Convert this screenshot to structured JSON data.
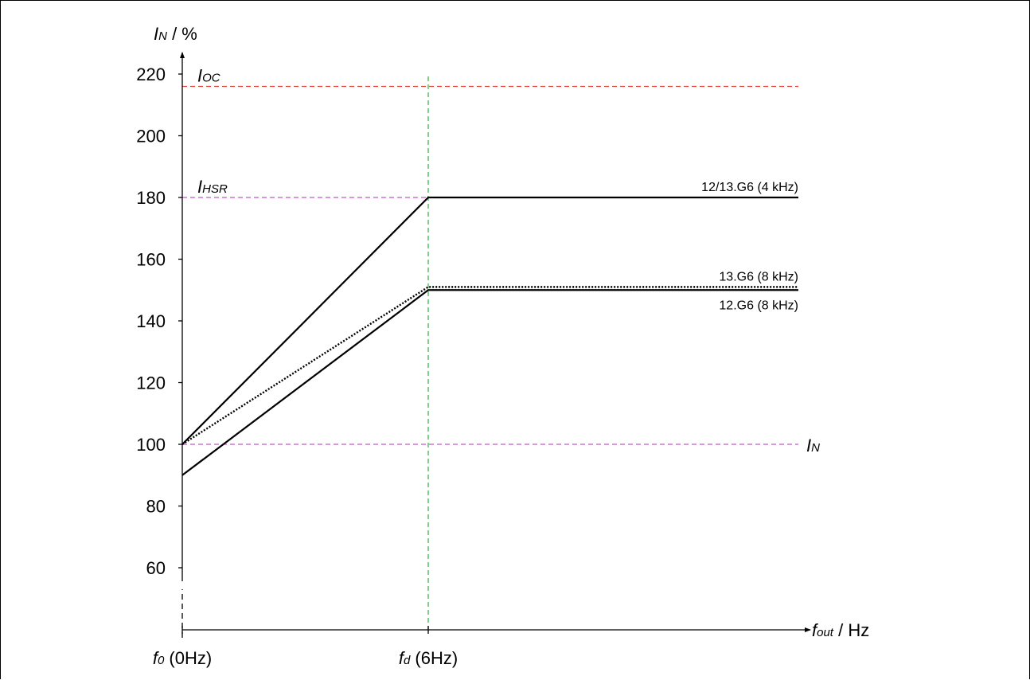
{
  "chart_data": {
    "type": "line",
    "y_axis": {
      "label_main": "I",
      "label_sub": "N",
      "label_unit": " / %",
      "ticks": [
        60,
        80,
        100,
        120,
        140,
        160,
        180,
        200,
        220
      ],
      "tick_labels": [
        "60",
        "80",
        "100",
        "120",
        "140",
        "160",
        "180",
        "200",
        "220"
      ]
    },
    "x_axis": {
      "label_main": "f",
      "label_sub": "out",
      "label_unit": " / Hz",
      "ticks": [
        0,
        6
      ],
      "tick_labels": [
        {
          "main": "f",
          "sub": "0",
          "rest": " (0Hz)"
        },
        {
          "main": "f",
          "sub": "d",
          "rest": " (6Hz)"
        }
      ]
    },
    "reference_lines": [
      {
        "name_main": "I",
        "name_sub": "OC",
        "value": 216,
        "color": "#e0453b"
      },
      {
        "name_main": "I",
        "name_sub": "HSR",
        "value": 180,
        "color": "#c159c7"
      },
      {
        "name_main": "I",
        "name_sub": "N",
        "value": 100,
        "color": "#c159c7"
      }
    ],
    "vertical_reference": {
      "x": 6,
      "color": "#3fb84a"
    },
    "series": [
      {
        "name": "12/13.G6 (4 kHz)",
        "style": "solid",
        "points": [
          [
            0,
            100
          ],
          [
            6,
            180
          ],
          [
            15,
            180
          ]
        ]
      },
      {
        "name": "13.G6 (8 kHz)",
        "style": "dotted",
        "points": [
          [
            0,
            100
          ],
          [
            6,
            151
          ],
          [
            15,
            151
          ]
        ]
      },
      {
        "name": "12.G6 (8 kHz)",
        "style": "solid",
        "points": [
          [
            0,
            90
          ],
          [
            6,
            150
          ],
          [
            15,
            150
          ]
        ]
      }
    ]
  }
}
